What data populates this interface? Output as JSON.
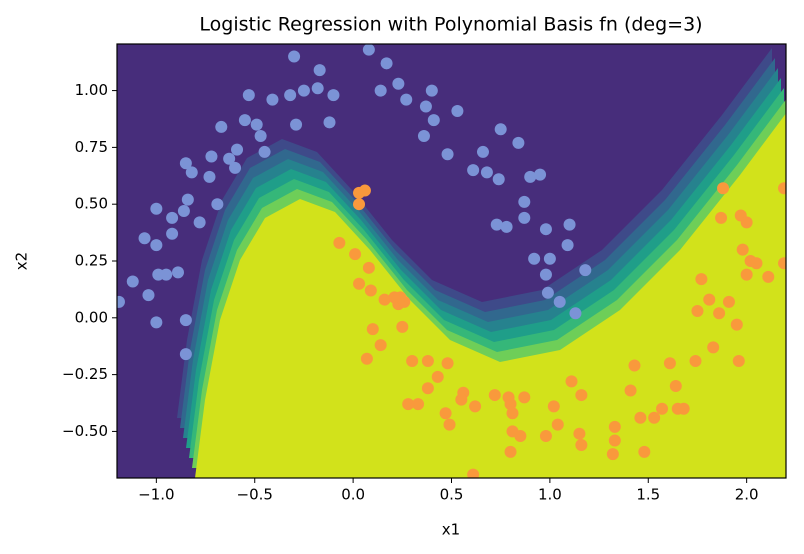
{
  "chart_data": {
    "type": "scatter",
    "title": "Logistic Regression with Polynomial Basis fn (deg=3)",
    "xlabel": "x1",
    "ylabel": "x2",
    "xlim": [
      -1.2,
      2.2
    ],
    "ylim": [
      -0.705,
      1.205
    ],
    "xticks": [
      {
        "value": -1.0,
        "label": "−1.0"
      },
      {
        "value": -0.5,
        "label": "−0.5"
      },
      {
        "value": 0.0,
        "label": "0.0"
      },
      {
        "value": 0.5,
        "label": "0.5"
      },
      {
        "value": 1.0,
        "label": "1.0"
      },
      {
        "value": 1.5,
        "label": "1.5"
      },
      {
        "value": 2.0,
        "label": "2.0"
      }
    ],
    "yticks": [
      {
        "value": -0.5,
        "label": "−0.50"
      },
      {
        "value": -0.25,
        "label": "−0.25"
      },
      {
        "value": 0.0,
        "label": "0.00"
      },
      {
        "value": 0.25,
        "label": "0.25"
      },
      {
        "value": 0.5,
        "label": "0.50"
      },
      {
        "value": 0.75,
        "label": "0.75"
      },
      {
        "value": 1.0,
        "label": "1.00"
      }
    ],
    "series": [
      {
        "color": "#7b93d6",
        "x": [
          -1.19,
          -1.12,
          -1.06,
          -1.04,
          -1.0,
          -1.0,
          -1.0,
          -0.99,
          -0.95,
          -0.89,
          -0.92,
          -0.92,
          -0.86,
          -0.84,
          -0.85,
          -0.82,
          -0.78,
          -0.85,
          -0.85,
          -0.73,
          -0.72,
          -0.69,
          -0.67,
          -0.63,
          -0.6,
          -0.59,
          -0.55,
          -0.53,
          -0.49,
          -0.47,
          -0.45,
          -0.41,
          -0.32,
          -0.29,
          -0.3,
          -0.25,
          -0.18,
          -0.17,
          -0.12,
          -0.1,
          0.08,
          0.14,
          0.17,
          0.23,
          0.27,
          0.37,
          0.4,
          0.41,
          0.36,
          0.48,
          0.53,
          0.61,
          0.66,
          0.68,
          0.74,
          0.75,
          0.73,
          0.78,
          0.84,
          0.87,
          0.87,
          0.9,
          0.92,
          0.95,
          0.98,
          0.98,
          1.0,
          0.99,
          1.05,
          1.09,
          1.1,
          1.13,
          1.18
        ],
        "values": [
          0.07,
          0.16,
          0.35,
          0.1,
          -0.02,
          0.48,
          0.32,
          0.19,
          0.19,
          0.2,
          0.37,
          0.44,
          0.47,
          0.52,
          0.68,
          0.64,
          0.42,
          -0.01,
          -0.16,
          0.62,
          0.71,
          0.5,
          0.84,
          0.7,
          0.66,
          0.74,
          0.87,
          0.98,
          0.85,
          0.8,
          0.73,
          0.96,
          0.98,
          0.85,
          1.15,
          1.0,
          1.01,
          1.09,
          0.86,
          0.98,
          1.18,
          1.0,
          1.12,
          1.03,
          0.96,
          0.93,
          1.0,
          0.87,
          0.8,
          0.72,
          0.91,
          0.65,
          0.73,
          0.64,
          0.61,
          0.83,
          0.41,
          0.4,
          0.77,
          0.51,
          0.44,
          0.62,
          0.26,
          0.63,
          0.39,
          0.19,
          0.26,
          0.11,
          0.07,
          0.32,
          0.41,
          0.02,
          0.21
        ]
      },
      {
        "color": "#f9993c",
        "x": [
          0.03,
          0.03,
          0.06,
          -0.07,
          0.01,
          0.08,
          0.03,
          0.09,
          0.16,
          0.23,
          0.26,
          0.25,
          0.1,
          0.14,
          0.07,
          0.3,
          0.38,
          0.38,
          0.43,
          0.48,
          0.47,
          0.49,
          0.56,
          0.55,
          0.62,
          0.28,
          0.33,
          0.61,
          0.72,
          0.79,
          0.8,
          0.81,
          0.81,
          0.8,
          0.87,
          0.85,
          0.98,
          1.02,
          1.04,
          1.15,
          1.16,
          1.11,
          1.16,
          1.32,
          1.33,
          1.33,
          1.41,
          1.43,
          1.46,
          1.53,
          1.57,
          1.48,
          1.61,
          1.64,
          1.65,
          1.68,
          1.74,
          1.75,
          1.77,
          1.81,
          1.83,
          1.86,
          1.91,
          1.95,
          1.96,
          2.02,
          1.98,
          2.0,
          2.05,
          1.97,
          2.0,
          1.88,
          1.87,
          2.11,
          2.19,
          2.19,
          0.24,
          0.21
        ],
        "values": [
          0.55,
          0.5,
          0.56,
          0.33,
          0.28,
          0.22,
          0.15,
          0.12,
          0.08,
          0.06,
          0.07,
          -0.04,
          -0.05,
          -0.12,
          -0.18,
          -0.19,
          -0.19,
          -0.31,
          -0.26,
          -0.2,
          -0.42,
          -0.47,
          -0.33,
          -0.36,
          -0.39,
          -0.38,
          -0.38,
          -0.69,
          -0.34,
          -0.35,
          -0.38,
          -0.5,
          -0.42,
          -0.59,
          -0.35,
          -0.52,
          -0.52,
          -0.39,
          -0.47,
          -0.51,
          -0.56,
          -0.28,
          -0.34,
          -0.6,
          -0.54,
          -0.48,
          -0.32,
          -0.21,
          -0.44,
          -0.44,
          -0.4,
          -0.59,
          -0.2,
          -0.3,
          -0.4,
          -0.4,
          -0.19,
          0.03,
          0.17,
          0.08,
          -0.13,
          0.02,
          0.07,
          -0.03,
          -0.19,
          0.25,
          0.3,
          0.19,
          0.24,
          0.45,
          0.42,
          0.57,
          0.44,
          0.18,
          0.24,
          0.57,
          0.09,
          0.09
        ]
      }
    ]
  }
}
